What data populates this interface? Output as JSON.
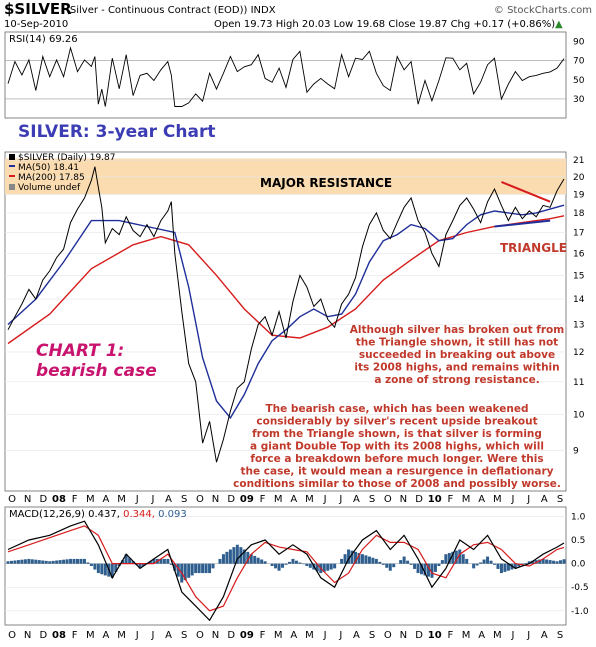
{
  "header": {
    "symbol": "$SILVER",
    "description": "(Silver - Continuous Contract (EOD)) INDX",
    "watermark": "© StockCharts.com",
    "date": "10-Sep-2010",
    "quote": "Open 19.73  High 20.03  Low 19.68  Close 19.87  Chg +0.17 (+0.86%)",
    "quote_arrow": "▲"
  },
  "annotations": {
    "chart_title": "SILVER: 3-year Chart",
    "chart_number": "CHART 1:",
    "chart_case": "bearish case",
    "resistance": "MAJOR RESISTANCE",
    "triangle": "TRIANGLE",
    "para1": [
      "Although silver has broken out from",
      "the Triangle shown, it still has not",
      "succeeded in breaking out above",
      "its 2008 highs, and remains within",
      "a zone of strong resistance."
    ],
    "para2": [
      "The bearish case, which has been weakened",
      "considerably by silver's recent upside breakout",
      "from the Triangle shown, is that silver is forming",
      "a giant Double Top with its 2008 highs, which will",
      "force a breakdown before much longer. Were this",
      "the case, it would mean a resurgence in deflationary",
      "conditions similar to those of 2008 and possibly worse."
    ]
  },
  "colors": {
    "resistance_band": "#fbdcb0",
    "ma50": "#1f2f9a",
    "ma200": "#d81b1b",
    "price": "#000000",
    "annotation_red": "#c0392b",
    "title_blue": "#3c3cb4",
    "chart_label_magenta": "#c8146e",
    "macd_hist": "#2f5f8f",
    "rsi_fill": "#4a7a3a"
  },
  "chart_data": [
    {
      "type": "line",
      "panel": "RSI",
      "label": "RSI(14) 69.26",
      "ylim": [
        10,
        100
      ],
      "yticks": [
        "90",
        "70",
        "50",
        "30"
      ],
      "ytick_values": [
        90,
        70,
        50,
        30
      ],
      "reference_lines": [
        70,
        30
      ],
      "note": "oscillator between ~20 and ~85"
    },
    {
      "type": "line",
      "panel": "price",
      "legend": [
        {
          "name": "$SILVER (Daily) 19.87",
          "color": "#000000"
        },
        {
          "name": "MA(50) 18.41",
          "color": "#1f2f9a"
        },
        {
          "name": "MA(200) 17.85",
          "color": "#d81b1b"
        },
        {
          "name": "Volume undef",
          "color": "#888888"
        }
      ],
      "ylim": [
        8.0,
        21.5
      ],
      "log_scale": true,
      "yticks": [
        "21",
        "20",
        "19",
        "18",
        "17",
        "16",
        "15",
        "14",
        "13",
        "12",
        "11",
        "10",
        "9"
      ],
      "ytick_values": [
        21,
        20,
        19,
        18,
        17,
        16,
        15,
        14,
        13,
        12,
        11,
        10,
        9
      ],
      "resistance_band": [
        19.0,
        21.1
      ],
      "x_tick_labels": [
        "O",
        "N",
        "D",
        "08",
        "F",
        "M",
        "A",
        "M",
        "J",
        "J",
        "A",
        "S",
        "O",
        "N",
        "D",
        "09",
        "F",
        "M",
        "A",
        "M",
        "J",
        "J",
        "A",
        "S",
        "O",
        "N",
        "D",
        "10",
        "F",
        "M",
        "A",
        "M",
        "J",
        "J",
        "A",
        "S"
      ],
      "price": [
        [
          0,
          12.8
        ],
        [
          1,
          13.3
        ],
        [
          2,
          13.8
        ],
        [
          3,
          14.4
        ],
        [
          4,
          14.0
        ],
        [
          5,
          14.8
        ],
        [
          6,
          15.2
        ],
        [
          7,
          15.8
        ],
        [
          8,
          16.2
        ],
        [
          9,
          17.5
        ],
        [
          10,
          18.2
        ],
        [
          11,
          18.8
        ],
        [
          12,
          19.8
        ],
        [
          12.5,
          20.6
        ],
        [
          13,
          19.4
        ],
        [
          13.5,
          18.3
        ],
        [
          14,
          16.5
        ],
        [
          15,
          17.2
        ],
        [
          16,
          16.9
        ],
        [
          17,
          17.8
        ],
        [
          18,
          17.1
        ],
        [
          19,
          16.8
        ],
        [
          20,
          17.4
        ],
        [
          21,
          16.8
        ],
        [
          22,
          17.6
        ],
        [
          23,
          18.1
        ],
        [
          23.5,
          18.6
        ],
        [
          24,
          16.0
        ],
        [
          25,
          13.5
        ],
        [
          26,
          11.6
        ],
        [
          27,
          11.0
        ],
        [
          28,
          9.2
        ],
        [
          29,
          9.8
        ],
        [
          30,
          8.7
        ],
        [
          31,
          9.3
        ],
        [
          32,
          10.1
        ],
        [
          33,
          10.8
        ],
        [
          34,
          11.0
        ],
        [
          35,
          12.1
        ],
        [
          36,
          13.0
        ],
        [
          37,
          13.3
        ],
        [
          38,
          12.6
        ],
        [
          39,
          13.5
        ],
        [
          40,
          12.5
        ],
        [
          41,
          13.9
        ],
        [
          42,
          15.0
        ],
        [
          43,
          14.5
        ],
        [
          44,
          13.7
        ],
        [
          45,
          14.0
        ],
        [
          46,
          13.2
        ],
        [
          47,
          12.9
        ],
        [
          48,
          13.8
        ],
        [
          49,
          14.2
        ],
        [
          50,
          14.9
        ],
        [
          51,
          16.3
        ],
        [
          52,
          17.4
        ],
        [
          53,
          18.0
        ],
        [
          54,
          17.1
        ],
        [
          55,
          16.7
        ],
        [
          56,
          17.5
        ],
        [
          57,
          18.3
        ],
        [
          58,
          18.8
        ],
        [
          59,
          17.6
        ],
        [
          60,
          17.0
        ],
        [
          61,
          16.0
        ],
        [
          62,
          15.4
        ],
        [
          63,
          16.9
        ],
        [
          64,
          17.6
        ],
        [
          65,
          18.4
        ],
        [
          66,
          18.8
        ],
        [
          67,
          18.2
        ],
        [
          68,
          17.5
        ],
        [
          69,
          18.6
        ],
        [
          70,
          19.3
        ],
        [
          71,
          18.4
        ],
        [
          72,
          17.6
        ],
        [
          73,
          18.3
        ],
        [
          74,
          17.7
        ],
        [
          75,
          18.1
        ],
        [
          76,
          17.8
        ],
        [
          77,
          18.4
        ],
        [
          78,
          18.3
        ],
        [
          79,
          19.2
        ],
        [
          80,
          19.87
        ]
      ],
      "ma50": [
        [
          0,
          13.0
        ],
        [
          4,
          14.0
        ],
        [
          8,
          15.6
        ],
        [
          12,
          17.6
        ],
        [
          16,
          17.6
        ],
        [
          20,
          17.3
        ],
        [
          24,
          17.0
        ],
        [
          26,
          14.5
        ],
        [
          28,
          11.8
        ],
        [
          30,
          10.4
        ],
        [
          32,
          9.9
        ],
        [
          34,
          10.6
        ],
        [
          36,
          11.6
        ],
        [
          38,
          12.4
        ],
        [
          40,
          12.8
        ],
        [
          42,
          13.3
        ],
        [
          44,
          13.6
        ],
        [
          46,
          13.3
        ],
        [
          48,
          13.4
        ],
        [
          50,
          14.2
        ],
        [
          52,
          15.6
        ],
        [
          54,
          16.6
        ],
        [
          56,
          16.9
        ],
        [
          58,
          17.4
        ],
        [
          60,
          17.2
        ],
        [
          62,
          16.6
        ],
        [
          64,
          16.7
        ],
        [
          66,
          17.4
        ],
        [
          68,
          17.9
        ],
        [
          70,
          18.1
        ],
        [
          72,
          18.0
        ],
        [
          74,
          17.9
        ],
        [
          76,
          18.0
        ],
        [
          78,
          18.2
        ],
        [
          80,
          18.41
        ]
      ],
      "ma200": [
        [
          0,
          12.3
        ],
        [
          6,
          13.4
        ],
        [
          12,
          15.3
        ],
        [
          18,
          16.4
        ],
        [
          22,
          16.8
        ],
        [
          26,
          16.4
        ],
        [
          30,
          15.0
        ],
        [
          34,
          13.6
        ],
        [
          38,
          12.6
        ],
        [
          42,
          12.5
        ],
        [
          46,
          12.9
        ],
        [
          50,
          13.6
        ],
        [
          54,
          14.8
        ],
        [
          58,
          15.7
        ],
        [
          62,
          16.6
        ],
        [
          66,
          17.0
        ],
        [
          70,
          17.3
        ],
        [
          74,
          17.5
        ],
        [
          78,
          17.7
        ],
        [
          80,
          17.85
        ]
      ],
      "triangle_lines": {
        "upper": [
          [
            71,
            19.7
          ],
          [
            78,
            18.6
          ]
        ],
        "lower": [
          [
            70,
            17.3
          ],
          [
            78,
            17.6
          ]
        ]
      }
    },
    {
      "type": "area",
      "panel": "MACD",
      "label": "MACD(12,26,9) 0.437, 0.344, 0.093",
      "label_prefix": "MACD(12,26,9)",
      "label_values": [
        "0.437,",
        "0.344,",
        "0.093"
      ],
      "ylim": [
        -1.3,
        1.2
      ],
      "yticks": [
        "1.0",
        "0.5",
        "0.0",
        "-0.5",
        "-1.0"
      ],
      "ytick_values": [
        1.0,
        0.5,
        0.0,
        -0.5,
        -1.0
      ],
      "macd": [
        [
          0,
          0.3
        ],
        [
          3,
          0.5
        ],
        [
          6,
          0.6
        ],
        [
          9,
          0.8
        ],
        [
          11,
          0.9
        ],
        [
          13,
          0.4
        ],
        [
          15,
          -0.3
        ],
        [
          17,
          0.2
        ],
        [
          19,
          -0.1
        ],
        [
          21,
          0.1
        ],
        [
          23,
          0.3
        ],
        [
          25,
          -0.6
        ],
        [
          27,
          -0.9
        ],
        [
          29,
          -1.2
        ],
        [
          31,
          -0.7
        ],
        [
          33,
          0.1
        ],
        [
          35,
          0.4
        ],
        [
          37,
          0.5
        ],
        [
          39,
          0.2
        ],
        [
          41,
          0.4
        ],
        [
          43,
          0.2
        ],
        [
          45,
          -0.3
        ],
        [
          47,
          -0.5
        ],
        [
          49,
          0.1
        ],
        [
          51,
          0.5
        ],
        [
          53,
          0.7
        ],
        [
          55,
          0.3
        ],
        [
          57,
          0.6
        ],
        [
          59,
          0.1
        ],
        [
          61,
          -0.5
        ],
        [
          63,
          -0.1
        ],
        [
          65,
          0.5
        ],
        [
          67,
          0.3
        ],
        [
          69,
          0.6
        ],
        [
          71,
          0.1
        ],
        [
          73,
          -0.1
        ],
        [
          75,
          0.0
        ],
        [
          77,
          0.2
        ],
        [
          79,
          0.35
        ],
        [
          80,
          0.437
        ]
      ],
      "signal": [
        [
          0,
          0.25
        ],
        [
          3,
          0.4
        ],
        [
          6,
          0.55
        ],
        [
          9,
          0.7
        ],
        [
          11,
          0.8
        ],
        [
          13,
          0.6
        ],
        [
          15,
          0.0
        ],
        [
          17,
          0.0
        ],
        [
          19,
          0.0
        ],
        [
          21,
          0.0
        ],
        [
          23,
          0.2
        ],
        [
          25,
          -0.2
        ],
        [
          27,
          -0.7
        ],
        [
          29,
          -1.0
        ],
        [
          31,
          -0.9
        ],
        [
          33,
          -0.3
        ],
        [
          35,
          0.2
        ],
        [
          37,
          0.45
        ],
        [
          39,
          0.35
        ],
        [
          41,
          0.3
        ],
        [
          43,
          0.25
        ],
        [
          45,
          -0.1
        ],
        [
          47,
          -0.4
        ],
        [
          49,
          -0.2
        ],
        [
          51,
          0.3
        ],
        [
          53,
          0.6
        ],
        [
          55,
          0.45
        ],
        [
          57,
          0.45
        ],
        [
          59,
          0.3
        ],
        [
          61,
          -0.2
        ],
        [
          63,
          -0.3
        ],
        [
          65,
          0.2
        ],
        [
          67,
          0.4
        ],
        [
          69,
          0.45
        ],
        [
          71,
          0.3
        ],
        [
          73,
          0.0
        ],
        [
          75,
          -0.05
        ],
        [
          77,
          0.1
        ],
        [
          79,
          0.3
        ],
        [
          80,
          0.344
        ]
      ]
    }
  ]
}
